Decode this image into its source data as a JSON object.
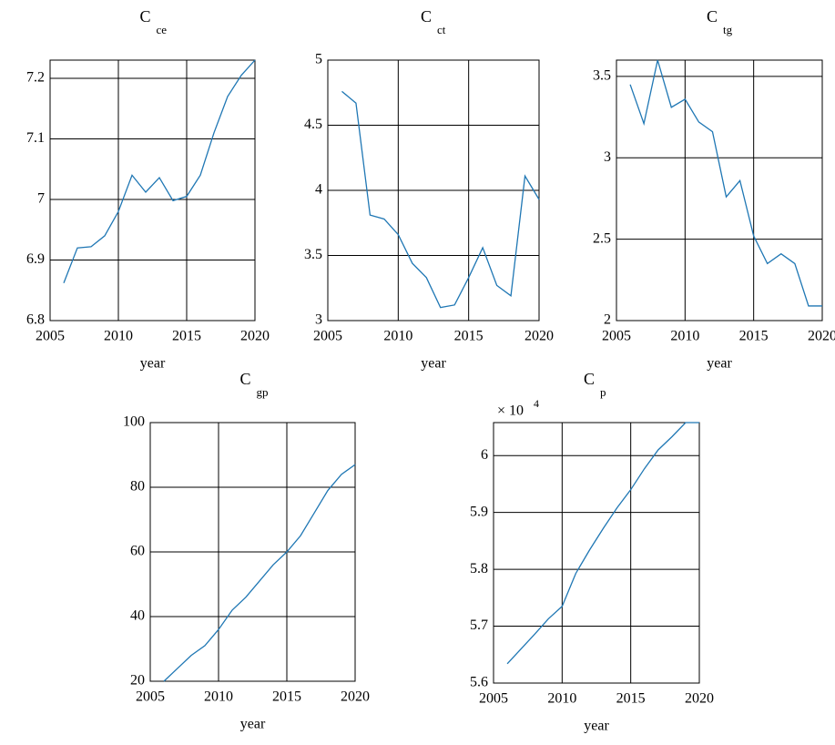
{
  "chart_data": [
    {
      "type": "line",
      "title": "C",
      "title_sub": "ce",
      "xlabel": "year",
      "x": [
        2006,
        2007,
        2008,
        2009,
        2010,
        2011,
        2012,
        2013,
        2014,
        2015,
        2016,
        2017,
        2018,
        2019,
        2020
      ],
      "series": [
        {
          "color": "#1f77b4",
          "values": [
            6.862,
            6.92,
            6.922,
            6.94,
            6.98,
            7.04,
            7.012,
            7.036,
            6.998,
            7.005,
            7.04,
            7.11,
            7.17,
            7.205,
            7.23
          ]
        }
      ],
      "xlim": [
        2005,
        2020
      ],
      "xticks": [
        2005,
        2010,
        2015,
        2020
      ],
      "ylim": [
        6.8,
        7.23
      ],
      "yticks": [
        6.8,
        6.9,
        {
          "value": 7.0,
          "label": "7"
        },
        7.1,
        7.2
      ],
      "grid": true
    },
    {
      "type": "line",
      "title": "C",
      "title_sub": "ct",
      "xlabel": "year",
      "x": [
        2006,
        2007,
        2008,
        2009,
        2010,
        2011,
        2012,
        2013,
        2014,
        2015,
        2016,
        2017,
        2018,
        2019,
        2020
      ],
      "series": [
        {
          "color": "#1f77b4",
          "values": [
            4.76,
            4.67,
            3.81,
            3.78,
            3.66,
            3.44,
            3.33,
            3.1,
            3.12,
            3.33,
            3.56,
            3.27,
            3.19,
            4.11,
            3.93
          ]
        }
      ],
      "xlim": [
        2005,
        2020
      ],
      "xticks": [
        2005,
        2010,
        2015,
        2020
      ],
      "ylim": [
        3,
        5
      ],
      "yticks": [
        3,
        3.5,
        4,
        4.5,
        5
      ],
      "grid": true
    },
    {
      "type": "line",
      "title": "C",
      "title_sub": "tg",
      "xlabel": "year",
      "x": [
        2006,
        2007,
        2008,
        2009,
        2010,
        2011,
        2012,
        2013,
        2014,
        2015,
        2016,
        2017,
        2018,
        2019,
        2020
      ],
      "series": [
        {
          "color": "#1f77b4",
          "values": [
            3.45,
            3.21,
            3.6,
            3.31,
            3.36,
            3.22,
            3.16,
            2.76,
            2.86,
            2.52,
            2.35,
            2.41,
            2.35,
            2.09,
            2.09
          ]
        }
      ],
      "xlim": [
        2005,
        2020
      ],
      "xticks": [
        2005,
        2010,
        2015,
        2020
      ],
      "ylim": [
        2,
        3.6
      ],
      "yticks": [
        2,
        2.5,
        3,
        3.5
      ],
      "grid": true
    },
    {
      "type": "line",
      "title": "C",
      "title_sub": "gp",
      "xlabel": "year",
      "x": [
        2006,
        2007,
        2008,
        2009,
        2010,
        2011,
        2012,
        2013,
        2014,
        2015,
        2016,
        2017,
        2018,
        2019,
        2020
      ],
      "series": [
        {
          "color": "#1f77b4",
          "values": [
            20,
            24,
            28,
            31,
            36,
            42,
            46,
            51,
            56,
            60,
            65,
            72,
            79,
            84,
            87
          ]
        }
      ],
      "xlim": [
        2005,
        2020
      ],
      "xticks": [
        2005,
        2010,
        2015,
        2020
      ],
      "ylim": [
        20,
        100
      ],
      "yticks": [
        20,
        40,
        60,
        80,
        100
      ],
      "grid": true
    },
    {
      "type": "line",
      "title": "C",
      "title_sub": "p",
      "xlabel": "year",
      "multiplier": "× 10",
      "multiplier_exp": "4",
      "x": [
        2006,
        2007,
        2008,
        2009,
        2010,
        2011,
        2012,
        2013,
        2014,
        2015,
        2016,
        2017,
        2018,
        2019,
        2020
      ],
      "series": [
        {
          "color": "#1f77b4",
          "values": [
            5.634,
            5.66,
            5.686,
            5.713,
            5.735,
            5.793,
            5.834,
            5.872,
            5.908,
            5.94,
            5.977,
            6.01,
            6.033,
            6.058,
            6.058
          ]
        }
      ],
      "xlim": [
        2005,
        2020
      ],
      "xticks": [
        2005,
        2010,
        2015,
        2020
      ],
      "ylim": [
        5.6,
        6.058
      ],
      "yticks": [
        5.6,
        5.7,
        5.8,
        5.9,
        {
          "value": 6.0,
          "label": "6"
        }
      ],
      "grid": true
    }
  ]
}
